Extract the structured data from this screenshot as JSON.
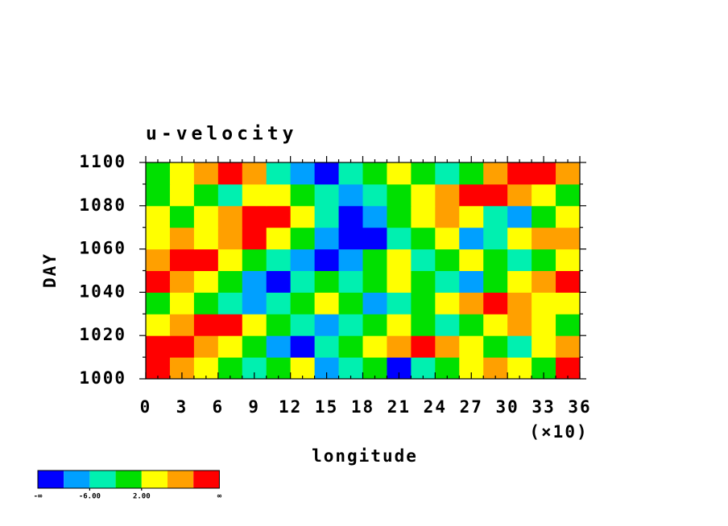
{
  "chart_data": {
    "type": "heatmap",
    "title": "u-velocity",
    "xlabel": "longitude",
    "ylabel": "DAY",
    "x_multiplier_label": "(×10)",
    "xlim": [
      0,
      36
    ],
    "xticks": [
      0,
      3,
      6,
      9,
      12,
      15,
      18,
      21,
      24,
      27,
      30,
      33,
      36
    ],
    "ylim": [
      1000,
      1100
    ],
    "yticks": [
      1000,
      1020,
      1040,
      1060,
      1080,
      1100
    ],
    "z": [
      [
        12,
        8,
        4,
        0,
        -4,
        0,
        4,
        -8,
        -4,
        0,
        -12,
        -4,
        0,
        4,
        8,
        4,
        0,
        12
      ],
      [
        12,
        12,
        8,
        4,
        0,
        -8,
        -12,
        -4,
        0,
        4,
        8,
        12,
        8,
        4,
        0,
        -4,
        4,
        8
      ],
      [
        4,
        8,
        12,
        12,
        4,
        0,
        -4,
        -8,
        -4,
        0,
        4,
        0,
        -4,
        0,
        4,
        8,
        4,
        0
      ],
      [
        0,
        4,
        0,
        -4,
        -8,
        -4,
        0,
        4,
        0,
        -8,
        -4,
        0,
        4,
        8,
        12,
        8,
        4,
        4
      ],
      [
        12,
        8,
        4,
        0,
        -8,
        -12,
        -4,
        0,
        -4,
        0,
        4,
        0,
        -4,
        -8,
        0,
        4,
        8,
        12
      ],
      [
        8,
        12,
        12,
        4,
        0,
        -4,
        -8,
        -12,
        -8,
        0,
        4,
        -4,
        0,
        4,
        0,
        -4,
        0,
        4
      ],
      [
        4,
        8,
        4,
        8,
        12,
        4,
        0,
        -8,
        -12,
        -12,
        -4,
        0,
        4,
        -8,
        -4,
        4,
        8,
        8
      ],
      [
        4,
        0,
        4,
        8,
        12,
        12,
        4,
        -4,
        -12,
        -8,
        0,
        4,
        8,
        4,
        -4,
        -8,
        0,
        4
      ],
      [
        0,
        4,
        0,
        -4,
        4,
        4,
        0,
        -4,
        -8,
        -4,
        0,
        4,
        8,
        12,
        12,
        8,
        4,
        0
      ],
      [
        0,
        4,
        8,
        12,
        8,
        -4,
        -8,
        -12,
        -4,
        0,
        4,
        0,
        -4,
        0,
        8,
        12,
        12,
        8
      ]
    ],
    "colorbar": {
      "colors": [
        "#0000ff",
        "#00a0ff",
        "#00f0b0",
        "#00e000",
        "#ffff00",
        "#ffa000",
        "#ff0000"
      ],
      "levels": [
        -10,
        -6,
        -2,
        2,
        6,
        10
      ],
      "ticks": [
        {
          "value": -6,
          "label": "-6.00"
        },
        {
          "value": 2,
          "label": "2.00"
        }
      ],
      "low_label": "-∞",
      "high_label": "∞"
    }
  }
}
